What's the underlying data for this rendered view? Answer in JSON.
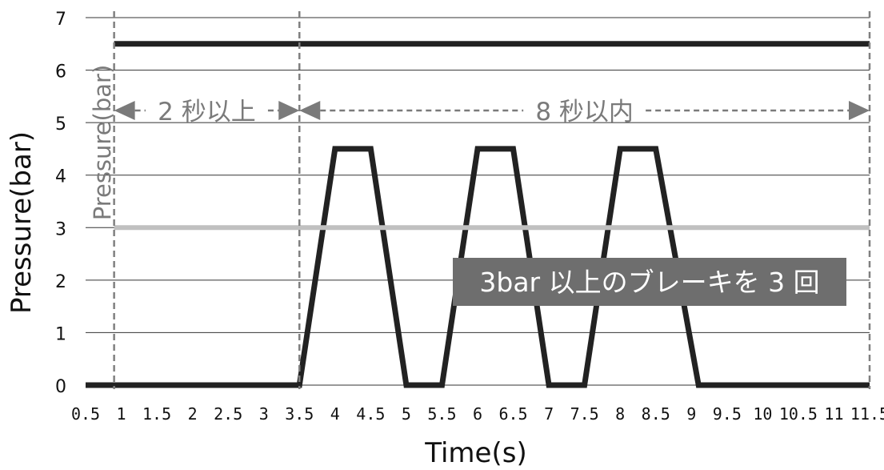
{
  "chart_data": {
    "type": "line",
    "xlabel": "Time(s)",
    "ylabel": "Pressure(bar)",
    "inner_ylabel": "Pressure(bar)",
    "xlim": [
      0.5,
      11.5
    ],
    "ylim": [
      0,
      7
    ],
    "grid": "horizontal",
    "x_ticks": [
      0.5,
      1,
      1.5,
      2,
      2.5,
      3,
      3.5,
      4,
      4.5,
      5,
      5.5,
      6,
      6.5,
      7,
      7.5,
      8,
      8.5,
      9,
      9.5,
      10,
      10.5,
      11,
      11.5
    ],
    "x_tick_labels": [
      "0.5",
      "1",
      "1.5",
      "2",
      "2.5",
      "3",
      "3.5",
      "4",
      "4.5",
      "5",
      "5.5",
      "6",
      "6.5",
      "7",
      "7.5",
      "8",
      "8.5",
      "9",
      "9.5",
      "10",
      "10.5",
      "11",
      "11.5"
    ],
    "y_ticks": [
      0,
      1,
      2,
      3,
      4,
      5,
      6,
      7
    ],
    "y_tick_labels": [
      "0",
      "1",
      "2",
      "3",
      "4",
      "5",
      "6",
      "7"
    ],
    "series": [
      {
        "color": "#222222",
        "x": [
          0.5,
          0.9,
          3.5,
          4.0,
          4.5,
          5.0,
          5.5,
          6.0,
          6.5,
          7.0,
          7.5,
          8.0,
          8.5,
          9.1,
          11.5
        ],
        "y": [
          6.5,
          6.5,
          6.5,
          6.5,
          6.5,
          6.5,
          6.5,
          6.5,
          6.5,
          6.5,
          6.5,
          6.5,
          6.5,
          6.5,
          6.5
        ],
        "range": [
          0.9,
          11.5
        ]
      },
      {
        "color": "#222222",
        "x": [
          0.5,
          3.5,
          4.0,
          4.5,
          5.0,
          5.5,
          6.0,
          6.5,
          7.0,
          7.5,
          8.0,
          8.5,
          9.1,
          11.5
        ],
        "y": [
          0,
          0,
          4.5,
          4.5,
          0,
          0,
          4.5,
          4.5,
          0,
          0,
          4.5,
          4.5,
          0,
          0
        ]
      },
      {
        "color": "#c0c0c0",
        "x": [
          0.9,
          11.5
        ],
        "y": [
          3,
          3
        ]
      }
    ],
    "vlines": [
      0.9,
      3.5,
      11.5
    ],
    "annotations": [
      {
        "text": "2 秒以上",
        "x_from": 0.9,
        "x_to": 3.5,
        "y": 5.3
      },
      {
        "text": "8 秒以内",
        "x_from": 3.5,
        "x_to": 11.5,
        "y": 5.3
      }
    ],
    "label_box": {
      "text": "3bar 以上のブレーキを 3 回",
      "color": "#6e6e6e"
    }
  }
}
